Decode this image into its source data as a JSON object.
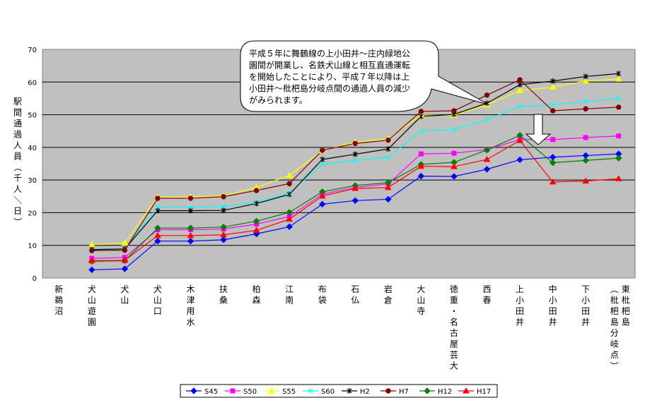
{
  "chart_data": {
    "type": "line",
    "ylabel": "駅間通過人員（千人／日）",
    "ylim": [
      0,
      70
    ],
    "yticks": [
      "0",
      "10",
      "20",
      "30",
      "40",
      "50",
      "60",
      "70"
    ],
    "grid": true,
    "legend_position": "bottom",
    "categories": [
      "新鵜沼",
      "犬山遊園",
      "犬山",
      "犬山口",
      "木津用水",
      "扶桑",
      "柏森",
      "江南",
      "布袋",
      "石仏",
      "岩倉",
      "大山寺",
      "徳重・名古屋芸大",
      "西春",
      "上小田井",
      "中小田井",
      "下小田井",
      "東枇杷島（枇杷島分岐点）"
    ],
    "series": [
      {
        "name": "S45",
        "color": "#0000ff",
        "marker": "diamond",
        "values": [
          null,
          2.5,
          2.8,
          11.3,
          11.3,
          11.7,
          13.5,
          15.7,
          22.6,
          23.7,
          24.1,
          31.2,
          31.1,
          33.3,
          36.2,
          37.0,
          37.5,
          38.0
        ]
      },
      {
        "name": "S50",
        "color": "#ff00ff",
        "marker": "square",
        "values": [
          null,
          6.0,
          6.3,
          14.8,
          14.8,
          15.0,
          16.5,
          18.8,
          25.7,
          27.7,
          28.8,
          38.0,
          38.2,
          39.3,
          42.4,
          42.4,
          43.0,
          43.5
        ]
      },
      {
        "name": "S55",
        "color": "#ffff00",
        "marker": "triangle",
        "values": [
          null,
          10.2,
          10.7,
          24.8,
          24.8,
          25.2,
          27.7,
          31.4,
          39.0,
          41.6,
          42.6,
          49.9,
          49.8,
          53.0,
          57.4,
          58.4,
          60.3,
          60.9
        ]
      },
      {
        "name": "S60",
        "color": "#00ffff",
        "marker": "x",
        "values": [
          null,
          8.9,
          8.9,
          21.7,
          21.7,
          21.9,
          23.2,
          26.0,
          34.8,
          36.0,
          37.0,
          45.0,
          45.5,
          48.4,
          52.5,
          53.0,
          54.0,
          55.0
        ]
      },
      {
        "name": "H2",
        "color": "#000000",
        "marker": "star",
        "values": [
          null,
          8.7,
          8.9,
          20.6,
          20.6,
          20.7,
          22.8,
          25.6,
          36.3,
          37.9,
          39.5,
          49.5,
          50.1,
          53.5,
          59.2,
          60.3,
          61.7,
          62.6
        ]
      },
      {
        "name": "H7",
        "color": "#800000",
        "marker": "circle",
        "values": [
          null,
          8.4,
          8.5,
          24.4,
          24.4,
          24.9,
          26.8,
          28.9,
          39.1,
          41.2,
          42.2,
          51.0,
          51.2,
          56.0,
          60.7,
          51.2,
          51.8,
          52.3
        ]
      },
      {
        "name": "H12",
        "color": "#008000",
        "marker": "diamond",
        "values": [
          null,
          5.1,
          5.3,
          15.3,
          15.3,
          15.6,
          17.4,
          20.1,
          26.4,
          28.3,
          29.2,
          34.8,
          35.4,
          39.2,
          43.7,
          35.3,
          36.0,
          36.7
        ]
      },
      {
        "name": "H17",
        "color": "#ff0000",
        "marker": "triangle",
        "values": [
          null,
          5.3,
          5.4,
          13.0,
          13.0,
          13.2,
          14.6,
          18.0,
          25.1,
          27.4,
          27.7,
          34.2,
          34.1,
          36.3,
          42.1,
          29.4,
          29.7,
          30.4
        ]
      }
    ],
    "annotation": "平成５年に舞鶴線の上小田井～庄内緑地公園間が開業し、名鉄犬山線と相互直通運転を開始したことにより、平成７年以降は上小田井～枇杷島分岐点間の通過人員の減少がみられます。",
    "annotation_lines": [
      "平成５年に舞鶴線の上小田井～庄内緑地公",
      "園間が開業し、名鉄犬山線と相互直通運転",
      "を開始したことにより、平成７年以降は上",
      "小田井～枇杷島分岐点間の通過人員の減少",
      "がみられます。"
    ]
  }
}
